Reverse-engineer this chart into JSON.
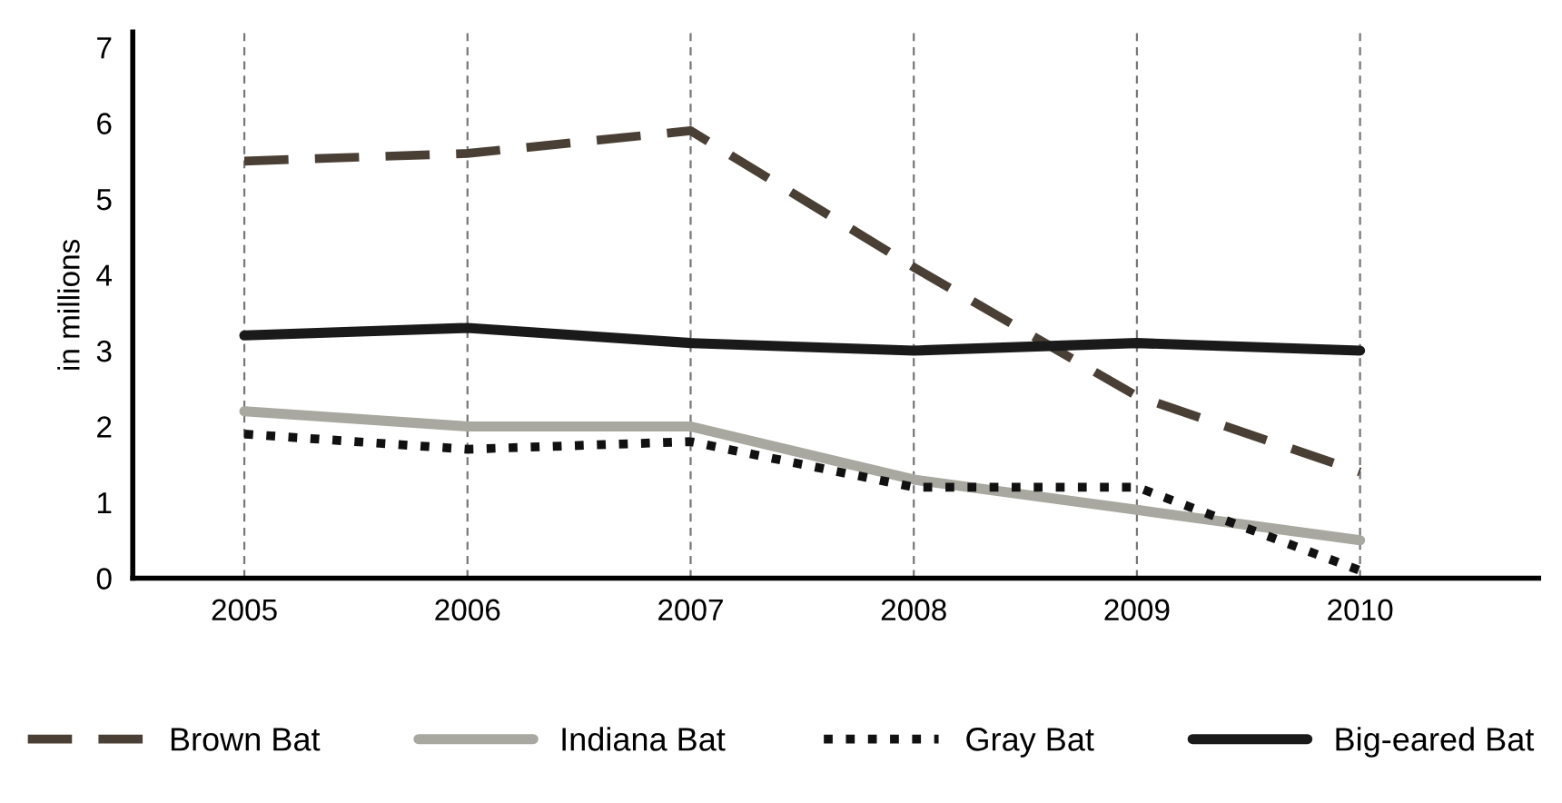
{
  "chart_data": {
    "type": "line",
    "ylabel": "in millions",
    "categories": [
      "2005",
      "2006",
      "2007",
      "2008",
      "2009",
      "2010"
    ],
    "series": [
      {
        "name": "Brown Bat",
        "color": "#4a3f35",
        "line_style": "dashed",
        "values": [
          5.5,
          5.6,
          5.9,
          4.1,
          2.4,
          1.4
        ]
      },
      {
        "name": "Indiana Bat",
        "color": "#a8a8a0",
        "line_style": "solid",
        "values": [
          2.2,
          2.0,
          2.0,
          1.3,
          0.9,
          0.5
        ]
      },
      {
        "name": "Gray Bat",
        "color": "#111111",
        "line_style": "dotted",
        "values": [
          1.9,
          1.7,
          1.8,
          1.2,
          1.2,
          0.1
        ]
      },
      {
        "name": "Big-eared Bat",
        "color": "#1a1a1a",
        "line_style": "solid",
        "values": [
          3.2,
          3.3,
          3.1,
          3.0,
          3.1,
          3.0
        ]
      }
    ],
    "ylim": [
      0,
      7.2
    ],
    "yticks": [
      0,
      1,
      2,
      3,
      4,
      5,
      6,
      7
    ],
    "grid": "x",
    "legend": "bottom",
    "marker": "none"
  }
}
